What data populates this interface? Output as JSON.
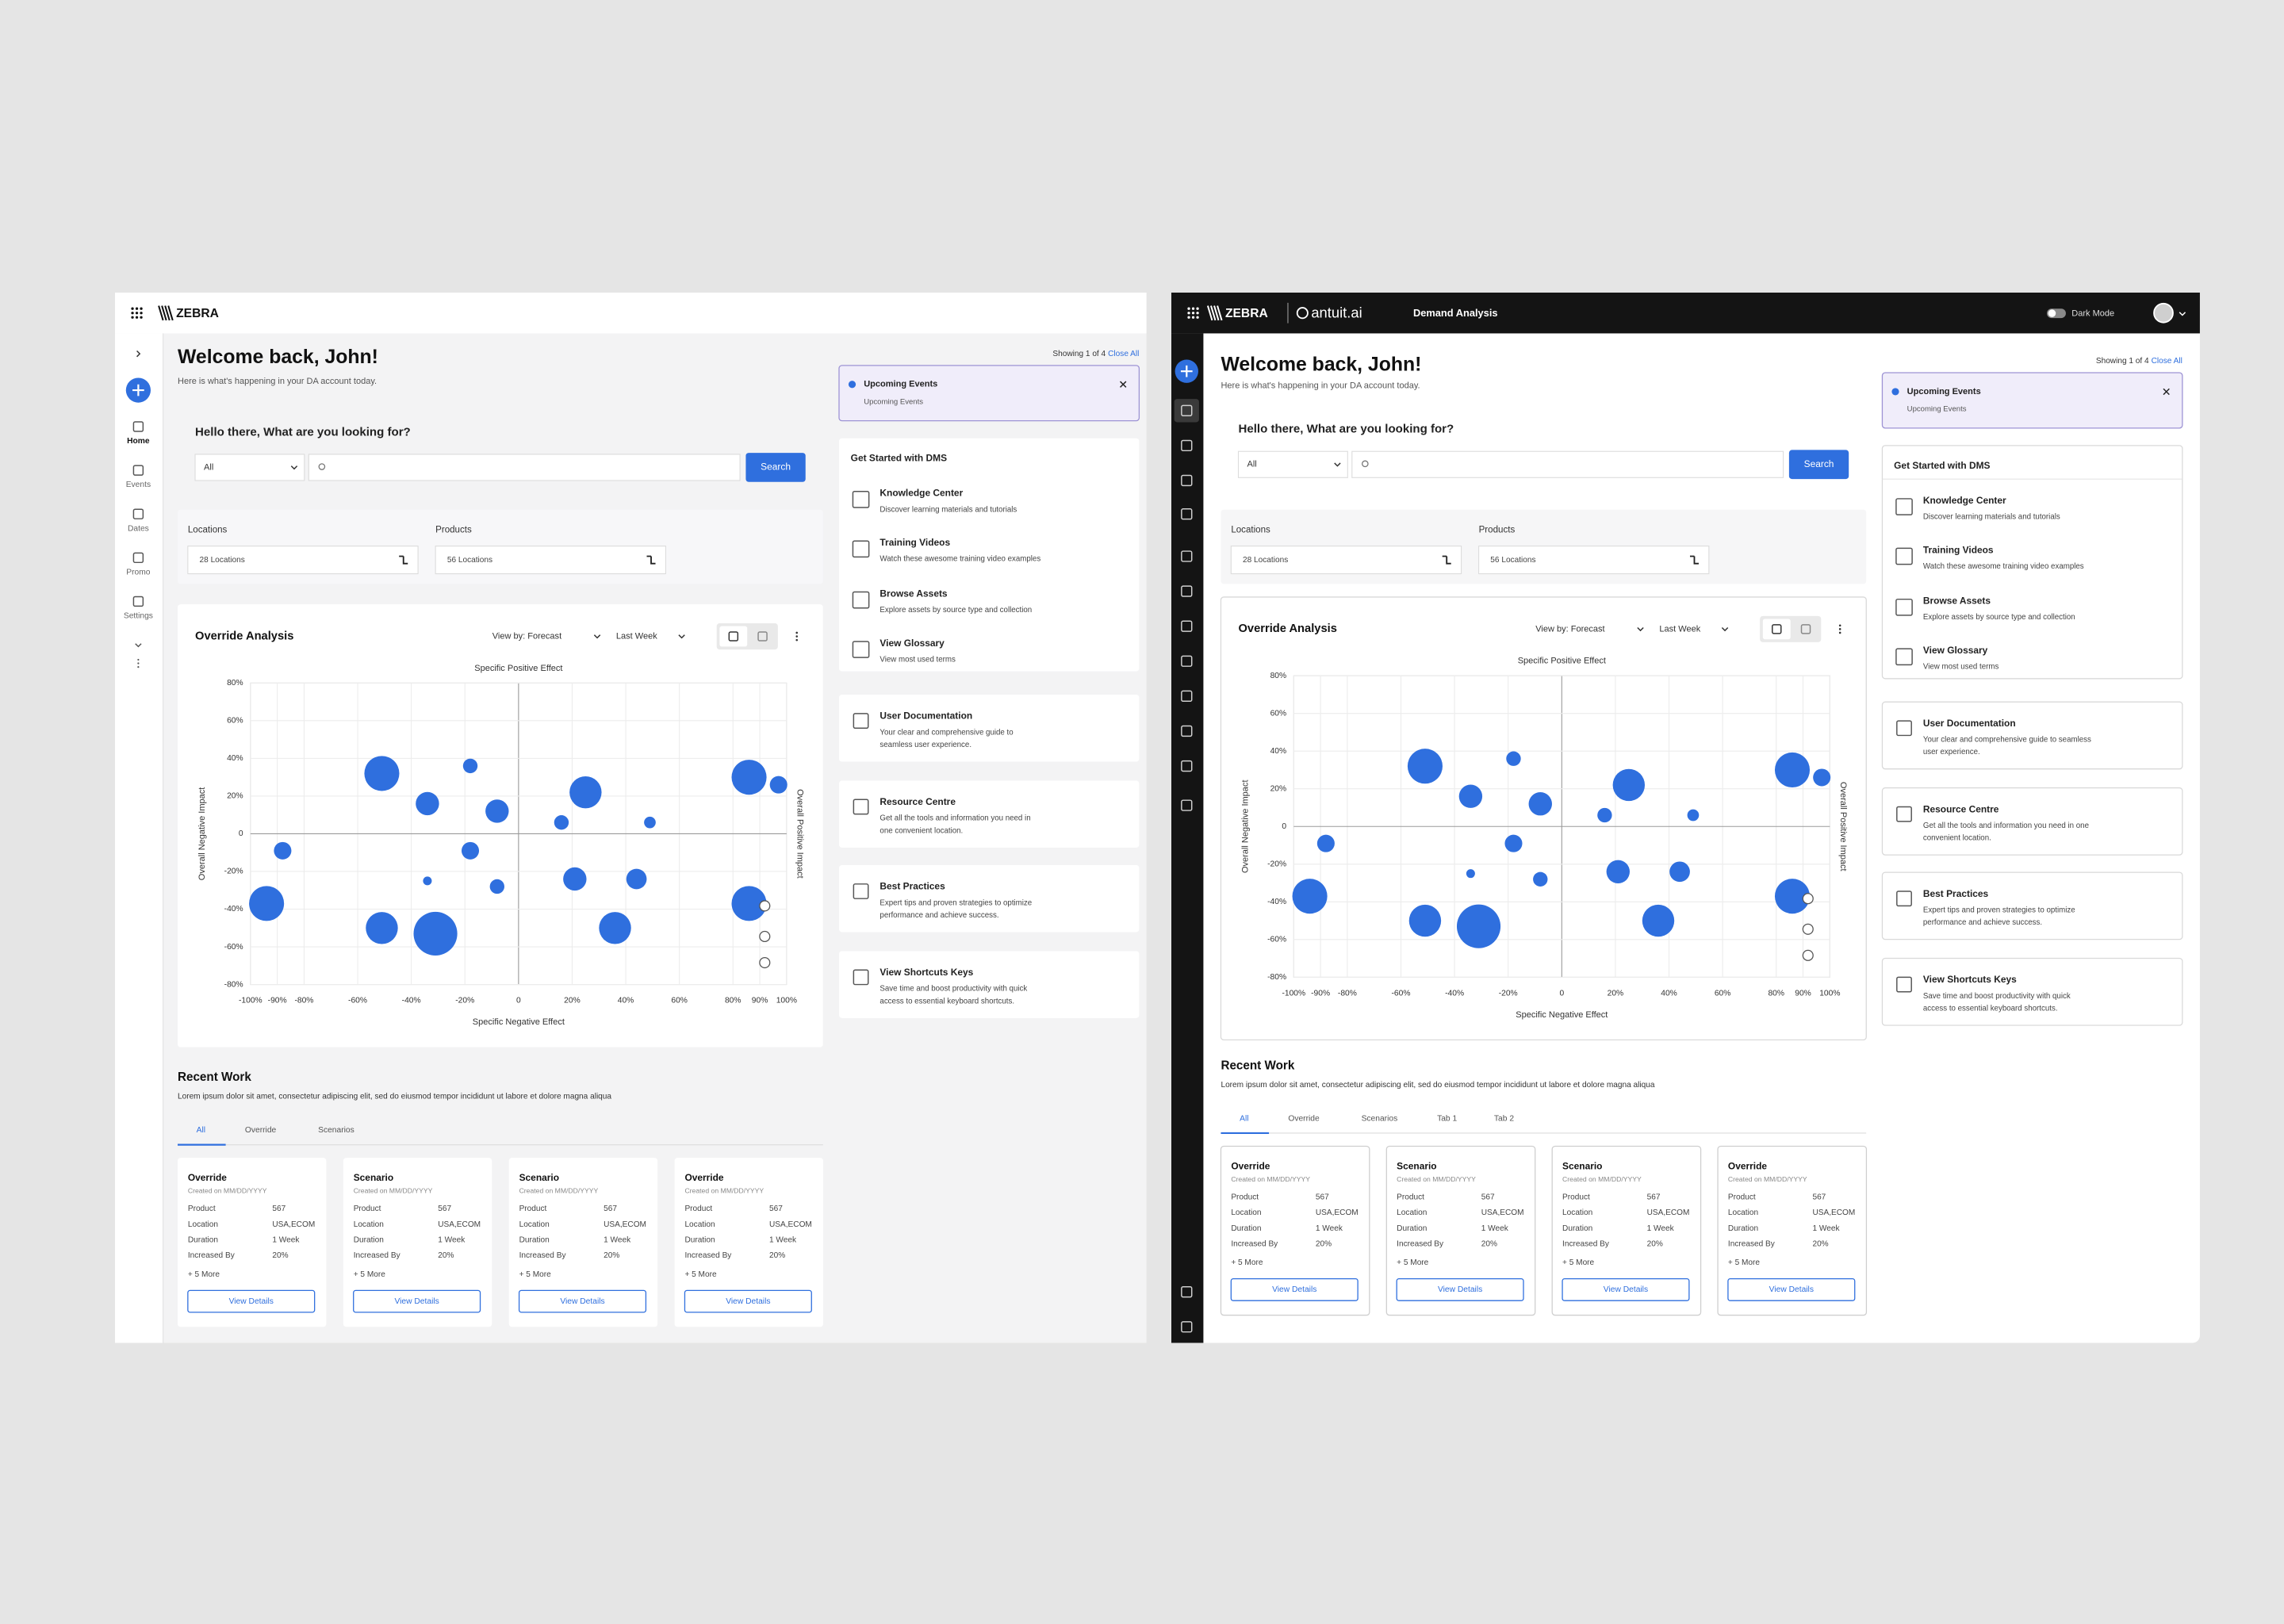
{
  "panels": [
    {
      "header": {
        "brand": "ZEBRA"
      },
      "sidebar": [
        "Home",
        "Events",
        "Dates",
        "Promo",
        "Settings"
      ],
      "welcome": {
        "title": "Welcome back, John!",
        "subtitle": "Here is what's happening in your DA account today."
      },
      "search": {
        "prompt": "Hello there, What are you looking for?",
        "filter": "All",
        "button": "Search"
      },
      "filters": {
        "locations": {
          "label": "Locations",
          "value": "28 Locations"
        },
        "products": {
          "label": "Products",
          "value": "56 Locations"
        }
      },
      "chart_card": {
        "title": "Override Analysis",
        "view_by": "View by: Forecast",
        "period": "Last Week"
      },
      "recent": {
        "title": "Recent Work",
        "description": "Lorem ipsum dolor sit amet, consectetur adipiscing elit, sed do eiusmod tempor incididunt ut labore et dolore magna aliqua",
        "tabs": [
          "All",
          "Override",
          "Scenarios"
        ],
        "cards": [
          {
            "title": "Override",
            "created": "Created on MM/DD/YYYY",
            "rows": [
              [
                "Product",
                "567"
              ],
              [
                "Location",
                "USA,ECOM"
              ],
              [
                "Duration",
                "1 Week"
              ],
              [
                "Increased By",
                "20%"
              ]
            ],
            "more": "+ 5 More",
            "button": "View Details"
          },
          {
            "title": "Scenario",
            "created": "Created on MM/DD/YYYY",
            "rows": [
              [
                "Product",
                "567"
              ],
              [
                "Location",
                "USA,ECOM"
              ],
              [
                "Duration",
                "1 Week"
              ],
              [
                "Increased By",
                "20%"
              ]
            ],
            "more": "+ 5 More",
            "button": "View Details"
          },
          {
            "title": "Scenario",
            "created": "Created on MM/DD/YYYY",
            "rows": [
              [
                "Product",
                "567"
              ],
              [
                "Location",
                "USA,ECOM"
              ],
              [
                "Duration",
                "1 Week"
              ],
              [
                "Increased By",
                "20%"
              ]
            ],
            "more": "+ 5 More",
            "button": "View Details"
          },
          {
            "title": "Override",
            "created": "Created on MM/DD/YYYY",
            "rows": [
              [
                "Product",
                "567"
              ],
              [
                "Location",
                "USA,ECOM"
              ],
              [
                "Duration",
                "1 Week"
              ],
              [
                "Increased By",
                "20%"
              ]
            ],
            "more": "+ 5 More",
            "button": "View Details"
          }
        ]
      },
      "notifications": {
        "showing": "Showing 1 of 4",
        "close_all": "Close All",
        "event": {
          "title": "Upcoming Events",
          "subtitle": "Upcoming Events"
        }
      },
      "get_started": {
        "title": "Get Started with DMS",
        "items": [
          {
            "title": "Knowledge Center",
            "description": "Discover learning materials and tutorials"
          },
          {
            "title": "Training Videos",
            "description": "Watch these awesome training video examples"
          },
          {
            "title": "Browse Assets",
            "description": "Explore assets by source type and collection"
          },
          {
            "title": "View Glossary",
            "description": "View most used terms"
          }
        ]
      },
      "resources": [
        {
          "title": "User Documentation",
          "description": [
            "Your clear and comprehensive guide to",
            "seamless user experience."
          ]
        },
        {
          "title": "Resource Centre",
          "description": [
            "Get all the tools and information you need in",
            "one convenient location."
          ]
        },
        {
          "title": "Best Practices",
          "description": [
            "Expert tips and proven strategies to optimize",
            "performance and achieve success."
          ]
        },
        {
          "title": "View Shortcuts Keys",
          "description": [
            "Save time and boost productivity with quick",
            "access to essential keyboard shortcuts."
          ]
        }
      ]
    },
    {
      "header": {
        "brand": "ZEBRA",
        "product": "antuit.ai",
        "app": "Demand Analysis",
        "dark_mode": "Dark Mode"
      },
      "welcome": {
        "title": "Welcome back, John!",
        "subtitle": "Here is what's happening in your DA account today."
      },
      "search": {
        "prompt": "Hello there, What are you looking for?",
        "filter": "All",
        "button": "Search"
      },
      "filters": {
        "locations": {
          "label": "Locations",
          "value": "28 Locations"
        },
        "products": {
          "label": "Products",
          "value": "56 Locations"
        }
      },
      "chart_card": {
        "title": "Override Analysis",
        "view_by": "View by: Forecast",
        "period": "Last Week"
      },
      "recent": {
        "title": "Recent Work",
        "description": "Lorem ipsum dolor sit amet, consectetur adipiscing elit, sed do eiusmod tempor incididunt ut labore et dolore magna aliqua",
        "tabs": [
          "All",
          "Override",
          "Scenarios",
          "Tab 1",
          "Tab 2"
        ],
        "cards": [
          {
            "title": "Override",
            "created": "Created on MM/DD/YYYY",
            "rows": [
              [
                "Product",
                "567"
              ],
              [
                "Location",
                "USA,ECOM"
              ],
              [
                "Duration",
                "1 Week"
              ],
              [
                "Increased By",
                "20%"
              ]
            ],
            "more": "+ 5 More",
            "button": "View Details"
          },
          {
            "title": "Scenario",
            "created": "Created on MM/DD/YYYY",
            "rows": [
              [
                "Product",
                "567"
              ],
              [
                "Location",
                "USA,ECOM"
              ],
              [
                "Duration",
                "1 Week"
              ],
              [
                "Increased By",
                "20%"
              ]
            ],
            "more": "+ 5 More",
            "button": "View Details"
          },
          {
            "title": "Scenario",
            "created": "Created on MM/DD/YYYY",
            "rows": [
              [
                "Product",
                "567"
              ],
              [
                "Location",
                "USA,ECOM"
              ],
              [
                "Duration",
                "1 Week"
              ],
              [
                "Increased By",
                "20%"
              ]
            ],
            "more": "+ 5 More",
            "button": "View Details"
          },
          {
            "title": "Override",
            "created": "Created on MM/DD/YYYY",
            "rows": [
              [
                "Product",
                "567"
              ],
              [
                "Location",
                "USA,ECOM"
              ],
              [
                "Duration",
                "1 Week"
              ],
              [
                "Increased By",
                "20%"
              ]
            ],
            "more": "+ 5 More",
            "button": "View Details"
          }
        ]
      },
      "notifications": {
        "showing": "Showing 1 of 4",
        "close_all": "Close All",
        "event": {
          "title": "Upcoming Events",
          "subtitle": "Upcoming Events"
        }
      },
      "get_started": {
        "title": "Get Started with DMS",
        "items": [
          {
            "title": "Knowledge Center",
            "description": "Discover learning materials and tutorials"
          },
          {
            "title": "Training Videos",
            "description": "Watch these awesome training video examples"
          },
          {
            "title": "Browse Assets",
            "description": "Explore assets by source type and collection"
          },
          {
            "title": "View Glossary",
            "description": "View most used terms"
          }
        ]
      },
      "resources": [
        {
          "title": "User Documentation",
          "description": [
            "Your clear and comprehensive guide to seamless",
            "user experience."
          ]
        },
        {
          "title": "Resource Centre",
          "description": [
            "Get all the tools and information you need in one",
            "convenient location."
          ]
        },
        {
          "title": "Best Practices",
          "description": [
            "Expert tips and proven strategies to optimize",
            "performance and achieve success."
          ]
        },
        {
          "title": "View Shortcuts Keys",
          "description": [
            "Save time and boost productivity with quick",
            "access to essential keyboard shortcuts."
          ]
        }
      ]
    }
  ],
  "chart_data": [
    {
      "type": "bubble",
      "xlabel_top": "Specific Positive Effect",
      "xlabel": "Specific Negative Effect",
      "ylabel": "Overall Negative Impact",
      "y2label": "Overall Positive Impact",
      "x": [
        -51,
        -34,
        -18,
        -8,
        25,
        16,
        49,
        86,
        97,
        -88,
        -18,
        -34,
        -8,
        21,
        44,
        -94,
        -51,
        -31,
        36,
        86
      ],
      "values": [
        32,
        16,
        36,
        12,
        22,
        6,
        6,
        30,
        26,
        -9,
        -9,
        -25,
        -28,
        -24,
        -24,
        -37,
        -50,
        -53,
        -50,
        -37
      ],
      "sizes": [
        12,
        8,
        5,
        8,
        11,
        5,
        4,
        12,
        6,
        6,
        6,
        3,
        5,
        8,
        7,
        12,
        11,
        15,
        11,
        12
      ],
      "color": "#2f6fde",
      "xlim": [
        -100,
        100
      ],
      "ylim": [
        -80,
        80
      ],
      "xticks": [
        {
          "value": -100,
          "label": "-100%"
        },
        {
          "value": -90,
          "label": "-90%"
        },
        {
          "value": -80,
          "label": "-80%"
        },
        {
          "value": -60,
          "label": "-60%"
        },
        {
          "value": -40,
          "label": "-40%"
        },
        {
          "value": -20,
          "label": "-20%"
        },
        0,
        {
          "value": 20,
          "label": "20%"
        },
        {
          "value": 40,
          "label": "40%"
        },
        {
          "value": 60,
          "label": "60%"
        },
        {
          "value": 80,
          "label": "80%"
        },
        {
          "value": 90,
          "label": "90%"
        },
        {
          "value": 100,
          "label": "100%"
        }
      ],
      "yticks": [
        {
          "value": -80,
          "label": "-80%"
        },
        {
          "value": -60,
          "label": "-60%"
        },
        {
          "value": -40,
          "label": "-40%"
        },
        {
          "value": -20,
          "label": "-20%"
        },
        0,
        {
          "value": 20,
          "label": "20%"
        },
        {
          "value": 40,
          "label": "40%"
        },
        {
          "value": 60,
          "label": "60%"
        },
        {
          "value": 80,
          "label": "80%"
        }
      ],
      "grid": true
    },
    {
      "type": "bubble",
      "xlabel_top": "Specific Positive Effect",
      "xlabel": "Specific Negative Effect",
      "ylabel": "Overall Negative Impact",
      "y2label": "Overall Positive Impact",
      "x": [
        -51,
        -34,
        -18,
        -8,
        25,
        16,
        49,
        86,
        97,
        -88,
        -18,
        -34,
        -8,
        21,
        44,
        -94,
        -51,
        -31,
        36,
        86
      ],
      "values": [
        32,
        16,
        36,
        12,
        22,
        6,
        6,
        30,
        26,
        -9,
        -9,
        -25,
        -28,
        -24,
        -24,
        -37,
        -50,
        -53,
        -50,
        -37
      ],
      "sizes": [
        12,
        8,
        5,
        8,
        11,
        5,
        4,
        12,
        6,
        6,
        6,
        3,
        5,
        8,
        7,
        12,
        11,
        15,
        11,
        12
      ],
      "color": "#2f6fde",
      "xlim": [
        -100,
        100
      ],
      "ylim": [
        -80,
        80
      ],
      "xticks": [
        {
          "value": -100,
          "label": "-100%"
        },
        {
          "value": -90,
          "label": "-90%"
        },
        {
          "value": -80,
          "label": "-80%"
        },
        {
          "value": -60,
          "label": "-60%"
        },
        {
          "value": -40,
          "label": "-40%"
        },
        {
          "value": -20,
          "label": "-20%"
        },
        0,
        {
          "value": 20,
          "label": "20%"
        },
        {
          "value": 40,
          "label": "40%"
        },
        {
          "value": 60,
          "label": "60%"
        },
        {
          "value": 80,
          "label": "80%"
        },
        {
          "value": 90,
          "label": "90%"
        },
        {
          "value": 100,
          "label": "100%"
        }
      ],
      "yticks": [
        {
          "value": -80,
          "label": "-80%"
        },
        {
          "value": -60,
          "label": "-60%"
        },
        {
          "value": -40,
          "label": "-40%"
        },
        {
          "value": -20,
          "label": "-20%"
        },
        0,
        {
          "value": 20,
          "label": "20%"
        },
        {
          "value": 40,
          "label": "40%"
        },
        {
          "value": 60,
          "label": "60%"
        },
        {
          "value": 80,
          "label": "80%"
        }
      ],
      "grid": true
    }
  ]
}
